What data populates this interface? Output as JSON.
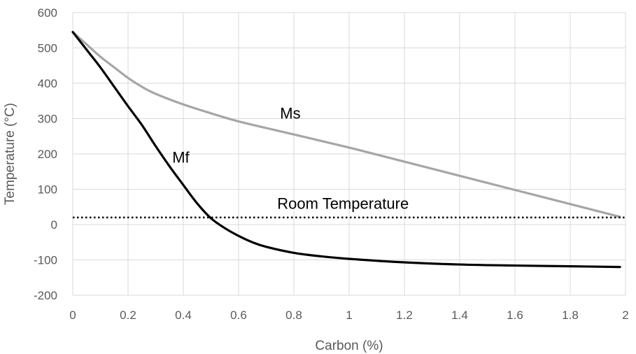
{
  "chart_data": {
    "type": "line",
    "xlabel": "Carbon (%)",
    "ylabel": "Temperature (°C)",
    "xlim": [
      0,
      2
    ],
    "ylim": [
      -200,
      600
    ],
    "x_ticks": [
      0,
      0.2,
      0.4,
      0.6,
      0.8,
      1,
      1.2,
      1.4,
      1.6,
      1.8,
      2
    ],
    "x_tick_labels": [
      "0",
      "0.2",
      "0.4",
      "0.6",
      "0.8",
      "1",
      "1.2",
      "1.4",
      "1.6",
      "1.8",
      "2"
    ],
    "y_ticks": [
      -200,
      -100,
      0,
      100,
      200,
      300,
      400,
      500,
      600
    ],
    "y_tick_labels": [
      "-200",
      "-100",
      "0",
      "100",
      "200",
      "300",
      "400",
      "500",
      "600"
    ],
    "grid": true,
    "series": [
      {
        "name": "Ms",
        "color": "#a6a6a6",
        "style": "solid",
        "x": [
          0,
          0.05,
          0.1,
          0.15,
          0.2,
          0.25,
          0.3,
          0.4,
          0.5,
          0.6,
          0.8,
          1.0,
          1.2,
          1.4,
          1.6,
          1.8,
          1.98
        ],
        "y": [
          545,
          510,
          475,
          445,
          415,
          390,
          370,
          340,
          315,
          292,
          255,
          218,
          178,
          138,
          98,
          58,
          22
        ]
      },
      {
        "name": "Mf",
        "color": "#000000",
        "style": "solid",
        "x": [
          0,
          0.05,
          0.1,
          0.15,
          0.2,
          0.25,
          0.3,
          0.35,
          0.4,
          0.45,
          0.5,
          0.55,
          0.6,
          0.65,
          0.7,
          0.8,
          0.9,
          1.0,
          1.2,
          1.4,
          1.6,
          1.8,
          1.98
        ],
        "y": [
          545,
          495,
          445,
          390,
          335,
          282,
          222,
          165,
          112,
          60,
          18,
          -10,
          -32,
          -50,
          -63,
          -80,
          -90,
          -97,
          -107,
          -113,
          -116,
          -118,
          -120
        ]
      },
      {
        "name": "Room Temperature",
        "color": "#000000",
        "style": "dotted",
        "x": [
          0,
          2
        ],
        "y": [
          20,
          20
        ]
      }
    ],
    "annotations": [
      {
        "text": "Ms",
        "x": 0.75,
        "y": 300
      },
      {
        "text": "Mf",
        "x": 0.36,
        "y": 175
      },
      {
        "text": "Room Temperature",
        "x": 0.74,
        "y": 45
      }
    ]
  }
}
